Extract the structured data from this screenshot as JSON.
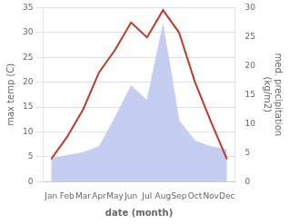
{
  "chart_data": {
    "type": "line",
    "categories": [
      "Jan",
      "Feb",
      "Mar",
      "Apr",
      "May",
      "Jun",
      "Jul",
      "Aug",
      "Sep",
      "Oct",
      "Nov",
      "Dec"
    ],
    "series": [
      {
        "type": "area",
        "color": "#c5cef0",
        "axis": "y2",
        "values": [
          4.0,
          4.5,
          5.0,
          6.0,
          11.0,
          16.5,
          14.0,
          27.0,
          10.5,
          7.0,
          6.0,
          5.5
        ]
      },
      {
        "type": "line",
        "color": "#c0392b",
        "values": [
          4.5,
          9.0,
          14.5,
          22.0,
          26.5,
          32.0,
          29.0,
          34.5,
          30.0,
          20.0,
          12.0,
          4.5
        ]
      }
    ],
    "xlabel": "date (month)",
    "ylabel": "max temp (C)",
    "y2label": "med. precipitation\n(kg/m2)",
    "ylim": [
      0,
      35
    ],
    "yticks": [
      0,
      5,
      10,
      15,
      20,
      25,
      30,
      35
    ],
    "y2lim": [
      0,
      30
    ],
    "y2ticks": [
      0,
      5,
      10,
      15,
      20,
      25,
      30
    ],
    "grid": true
  }
}
